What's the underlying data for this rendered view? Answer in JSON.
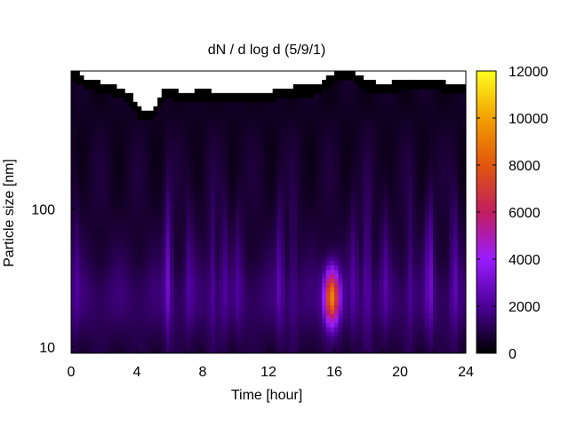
{
  "chart_data": {
    "type": "heatmap",
    "title": "dN / d log d (5/9/1)",
    "xlabel": "Time [hour]",
    "ylabel": "Particle size [nm]",
    "xlim": [
      0,
      24
    ],
    "ylim": [
      9,
      1000
    ],
    "y_scale": "log",
    "x_ticks": [
      0,
      4,
      8,
      12,
      16,
      20,
      24
    ],
    "x_tick_labels": [
      "0",
      "4",
      "8",
      "12",
      "16",
      "20",
      "24"
    ],
    "y_ticks": [
      10,
      100
    ],
    "y_tick_labels": [
      "10",
      "100"
    ],
    "colorbar": {
      "min": 0,
      "max": 12000,
      "ticks": [
        0,
        2000,
        4000,
        6000,
        8000,
        10000,
        12000
      ],
      "tick_labels": [
        "0",
        "2000",
        "4000",
        "6000",
        "8000",
        "10000",
        "12000"
      ],
      "colormap": [
        "#000000",
        "#4b0096",
        "#9a1cff",
        "#c11d5f",
        "#e2560d",
        "#f2a000",
        "#ffff20"
      ]
    },
    "upper_size_limit_nm": [
      {
        "hour": 0.0,
        "nm": 880
      },
      {
        "hour": 0.5,
        "nm": 800
      },
      {
        "hour": 1.0,
        "nm": 740
      },
      {
        "hour": 2.0,
        "nm": 690
      },
      {
        "hour": 3.0,
        "nm": 640
      },
      {
        "hour": 3.7,
        "nm": 560
      },
      {
        "hour": 4.0,
        "nm": 470
      },
      {
        "hour": 4.5,
        "nm": 430
      },
      {
        "hour": 5.0,
        "nm": 450
      },
      {
        "hour": 5.5,
        "nm": 590
      },
      {
        "hour": 6.0,
        "nm": 670
      },
      {
        "hour": 6.5,
        "nm": 600
      },
      {
        "hour": 7.0,
        "nm": 600
      },
      {
        "hour": 8.0,
        "nm": 620
      },
      {
        "hour": 9.0,
        "nm": 600
      },
      {
        "hour": 12.0,
        "nm": 600
      },
      {
        "hour": 13.0,
        "nm": 650
      },
      {
        "hour": 15.0,
        "nm": 670
      },
      {
        "hour": 16.0,
        "nm": 840
      },
      {
        "hour": 17.0,
        "nm": 850
      },
      {
        "hour": 18.0,
        "nm": 720
      },
      {
        "hour": 19.0,
        "nm": 690
      },
      {
        "hour": 20.0,
        "nm": 720
      },
      {
        "hour": 22.0,
        "nm": 730
      },
      {
        "hour": 23.0,
        "nm": 700
      },
      {
        "hour": 24.0,
        "nm": 690
      }
    ],
    "features": [
      {
        "label": "peak",
        "hour_range": [
          15.1,
          16.6
        ],
        "size_range_nm": [
          12,
          45
        ],
        "value": 9500
      },
      {
        "label": "band",
        "hour_range": [
          5.5,
          6.6
        ],
        "size_range_nm": [
          10,
          250
        ],
        "value": 2600
      },
      {
        "label": "band",
        "hour_range": [
          21.5,
          22.0
        ],
        "size_range_nm": [
          10,
          200
        ],
        "value": 2500
      },
      {
        "label": "background",
        "size_range_nm": [
          10,
          60
        ],
        "value": 1500
      }
    ]
  }
}
